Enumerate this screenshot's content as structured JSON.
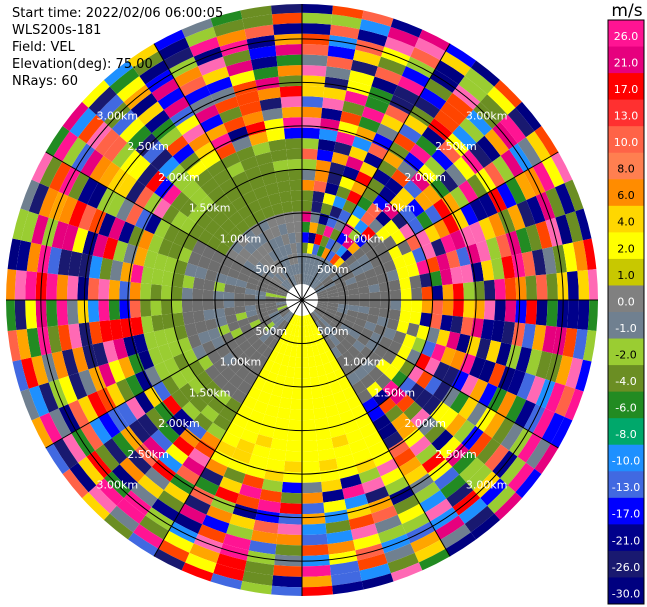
{
  "header": {
    "start_time": "Start time: 2022/02/06 06:00:05",
    "instrument": "WLS200s-181",
    "field": "Field: VEL",
    "elevation": "Elevation(deg): 75.00",
    "nrays": "NRays: 60"
  },
  "chart_data": {
    "type": "heatmap",
    "projection": "polar-ppi",
    "field": "VEL",
    "units": "m/s",
    "nrays": 60,
    "elevation_deg": 75.0,
    "range_rings_km": [
      0.5,
      1.0,
      1.5,
      2.0,
      2.5,
      3.0
    ],
    "ring_labels": [
      "500m",
      "1.00km",
      "1.50km",
      "2.00km",
      "2.50km",
      "3.00km"
    ],
    "max_range_km": 3.4,
    "colorbar": {
      "label": "m/s",
      "ticks": [
        "26.0",
        "21.0",
        "17.0",
        "13.0",
        "10.0",
        "8.0",
        "6.0",
        "4.0",
        "2.0",
        "1.0",
        "0.0",
        "-1.0",
        "-2.0",
        "-4.0",
        "-6.0",
        "-8.0",
        "-10.0",
        "-13.0",
        "-17.0",
        "-21.0",
        "-26.0",
        "-30.0"
      ],
      "colors": [
        "#ff1493",
        "#e6007e",
        "#ff0000",
        "#ff3030",
        "#ff6347",
        "#ff7f50",
        "#ff8c00",
        "#ffd700",
        "#ffff00",
        "#c8c800",
        "#808080",
        "#708090",
        "#9acd32",
        "#6b8e23",
        "#228b22",
        "#00a86b",
        "#1e90ff",
        "#4169e1",
        "#0000ff",
        "#00008b",
        "#191970",
        "#000080"
      ]
    },
    "sectors": [
      {
        "azimuth_range_deg": [
          0,
          45
        ],
        "near_range_color": "#708090",
        "description_value": "chaotic"
      },
      {
        "azimuth_range_deg": [
          45,
          150
        ],
        "near_range_color": "#6e6e6e"
      },
      {
        "azimuth_range_deg": [
          150,
          210
        ],
        "near_range_color": "#ffff00"
      },
      {
        "azimuth_range_deg": [
          210,
          300
        ],
        "near_range_color": "#6e6e6e"
      },
      {
        "azimuth_range_deg": [
          300,
          360
        ],
        "near_range_color": "#6b8e23"
      }
    ]
  }
}
